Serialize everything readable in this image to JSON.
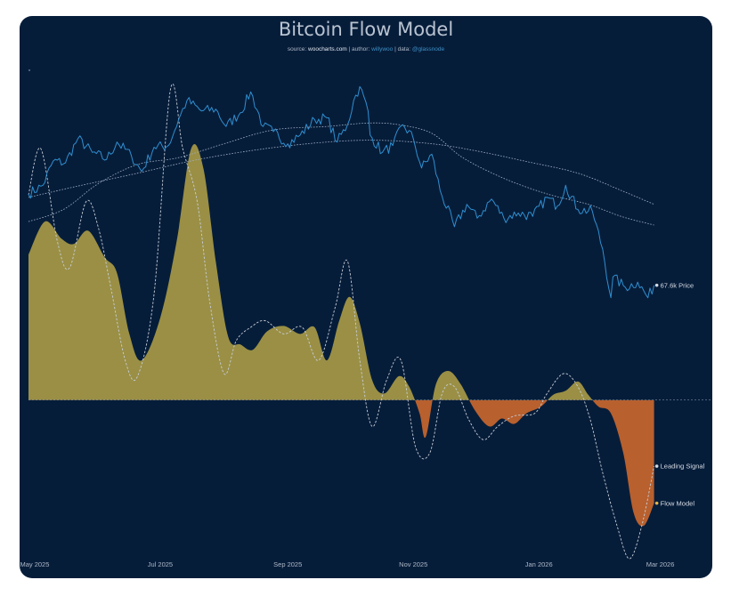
{
  "chart_data": {
    "type": "line",
    "title": "Bitcoin Flow Model",
    "subtitle": {
      "source_prefix": "source: ",
      "source": "woocharts.com",
      "author_prefix": " | author: ",
      "author": "willywoo",
      "data_prefix": " | data: ",
      "data": "@glassnode"
    },
    "x_range": [
      "2025-04-28",
      "2026-03-12"
    ],
    "x_ticks": [
      {
        "date": "2025-05-01",
        "label": "May 2025"
      },
      {
        "date": "2025-07-01",
        "label": "Jul 2025"
      },
      {
        "date": "2025-09-01",
        "label": "Sep 2025"
      },
      {
        "date": "2025-11-01",
        "label": "Nov 2025"
      },
      {
        "date": "2026-01-01",
        "label": "Jan 2026"
      },
      {
        "date": "2026-03-01",
        "label": "Mar 2026"
      }
    ],
    "price_range": [
      40000,
      130000
    ],
    "flow_range": [
      -1.3,
      2.5
    ],
    "grid": false,
    "legend": "end-labels",
    "series": [
      {
        "name": "Price",
        "axis": "price",
        "end_label": "67.6k Price",
        "color": "#2f8fd0",
        "points": [
          [
            "2025-04-28",
            94000
          ],
          [
            "2025-05-05",
            96500
          ],
          [
            "2025-05-10",
            103500
          ],
          [
            "2025-05-16",
            103000
          ],
          [
            "2025-05-22",
            110000
          ],
          [
            "2025-05-29",
            106000
          ],
          [
            "2025-06-05",
            104000
          ],
          [
            "2025-06-10",
            109000
          ],
          [
            "2025-06-17",
            105000
          ],
          [
            "2025-06-22",
            100500
          ],
          [
            "2025-06-28",
            107500
          ],
          [
            "2025-07-05",
            108000
          ],
          [
            "2025-07-11",
            117000
          ],
          [
            "2025-07-14",
            121000
          ],
          [
            "2025-07-21",
            118000
          ],
          [
            "2025-07-28",
            118500
          ],
          [
            "2025-08-02",
            113500
          ],
          [
            "2025-08-09",
            117500
          ],
          [
            "2025-08-14",
            123500
          ],
          [
            "2025-08-20",
            113500
          ],
          [
            "2025-08-25",
            112000
          ],
          [
            "2025-09-01",
            108500
          ],
          [
            "2025-09-07",
            111000
          ],
          [
            "2025-09-14",
            115500
          ],
          [
            "2025-09-20",
            116000
          ],
          [
            "2025-09-25",
            109000
          ],
          [
            "2025-09-30",
            114000
          ],
          [
            "2025-10-03",
            121000
          ],
          [
            "2025-10-06",
            125000
          ],
          [
            "2025-10-10",
            118000
          ],
          [
            "2025-10-11",
            111000
          ],
          [
            "2025-10-17",
            106000
          ],
          [
            "2025-10-22",
            108000
          ],
          [
            "2025-10-27",
            114000
          ],
          [
            "2025-11-01",
            110000
          ],
          [
            "2025-11-05",
            101500
          ],
          [
            "2025-11-10",
            105500
          ],
          [
            "2025-11-14",
            95000
          ],
          [
            "2025-11-21",
            84500
          ],
          [
            "2025-11-27",
            91000
          ],
          [
            "2025-12-02",
            87000
          ],
          [
            "2025-12-09",
            92500
          ],
          [
            "2025-12-15",
            87000
          ],
          [
            "2025-12-22",
            88500
          ],
          [
            "2025-12-29",
            87500
          ],
          [
            "2026-01-05",
            93000
          ],
          [
            "2026-01-10",
            90500
          ],
          [
            "2026-01-14",
            96500
          ],
          [
            "2026-01-20",
            89500
          ],
          [
            "2026-01-27",
            89000
          ],
          [
            "2026-02-01",
            78000
          ],
          [
            "2026-02-05",
            64000
          ],
          [
            "2026-02-06",
            70000
          ],
          [
            "2026-02-12",
            67000
          ],
          [
            "2026-02-18",
            68500
          ],
          [
            "2026-02-23",
            64000
          ],
          [
            "2026-02-26",
            67600
          ]
        ]
      },
      {
        "name": "Price 100-day average",
        "axis": "price",
        "color": "#9fb0c6",
        "dashed": true,
        "points": [
          [
            "2025-04-28",
            86000
          ],
          [
            "2025-05-15",
            89500
          ],
          [
            "2025-06-01",
            97000
          ],
          [
            "2025-06-20",
            102500
          ],
          [
            "2025-07-10",
            104500
          ],
          [
            "2025-08-01",
            108500
          ],
          [
            "2025-08-25",
            112500
          ],
          [
            "2025-09-20",
            113500
          ],
          [
            "2025-10-10",
            114500
          ],
          [
            "2025-10-25",
            114000
          ],
          [
            "2025-11-10",
            111500
          ],
          [
            "2025-11-25",
            104500
          ],
          [
            "2025-12-15",
            98500
          ],
          [
            "2026-01-05",
            94000
          ],
          [
            "2026-01-25",
            91000
          ],
          [
            "2026-02-10",
            87500
          ],
          [
            "2026-02-26",
            85000
          ]
        ]
      },
      {
        "name": "Price 200-day average",
        "axis": "price",
        "color": "#9fb0c6",
        "dashed": true,
        "points": [
          [
            "2025-04-28",
            93000
          ],
          [
            "2025-05-20",
            96000
          ],
          [
            "2025-06-20",
            100000
          ],
          [
            "2025-07-20",
            104000
          ],
          [
            "2025-08-20",
            107000
          ],
          [
            "2025-09-20",
            109000
          ],
          [
            "2025-10-15",
            109500
          ],
          [
            "2025-11-10",
            108500
          ],
          [
            "2025-12-01",
            106500
          ],
          [
            "2025-12-25",
            103500
          ],
          [
            "2026-01-20",
            100000
          ],
          [
            "2026-02-10",
            95000
          ],
          [
            "2026-02-26",
            91000
          ]
        ]
      },
      {
        "name": "Flow Model",
        "axis": "flow",
        "end_label": "Flow Model",
        "color_positive": "#9a8f45",
        "color_negative": "#b8602e",
        "dot_color": "#e2b64a",
        "points": [
          [
            "2025-04-28",
            1.1
          ],
          [
            "2025-05-06",
            1.35
          ],
          [
            "2025-05-14",
            1.22
          ],
          [
            "2025-05-20",
            1.18
          ],
          [
            "2025-05-27",
            1.28
          ],
          [
            "2025-06-04",
            1.08
          ],
          [
            "2025-06-10",
            0.96
          ],
          [
            "2025-06-16",
            0.5
          ],
          [
            "2025-06-22",
            0.3
          ],
          [
            "2025-07-01",
            0.62
          ],
          [
            "2025-07-09",
            1.2
          ],
          [
            "2025-07-16",
            1.9
          ],
          [
            "2025-07-22",
            1.75
          ],
          [
            "2025-07-28",
            1.05
          ],
          [
            "2025-08-03",
            0.48
          ],
          [
            "2025-08-09",
            0.42
          ],
          [
            "2025-08-15",
            0.38
          ],
          [
            "2025-08-22",
            0.52
          ],
          [
            "2025-08-30",
            0.56
          ],
          [
            "2025-09-07",
            0.5
          ],
          [
            "2025-09-14",
            0.55
          ],
          [
            "2025-09-20",
            0.3
          ],
          [
            "2025-09-26",
            0.6
          ],
          [
            "2025-10-01",
            0.78
          ],
          [
            "2025-10-06",
            0.58
          ],
          [
            "2025-10-12",
            0.15
          ],
          [
            "2025-10-18",
            0.05
          ],
          [
            "2025-10-25",
            0.18
          ],
          [
            "2025-10-30",
            0.1
          ],
          [
            "2025-11-04",
            -0.1
          ],
          [
            "2025-11-07",
            -0.28
          ],
          [
            "2025-11-12",
            0.12
          ],
          [
            "2025-11-18",
            0.22
          ],
          [
            "2025-11-24",
            0.12
          ],
          [
            "2025-12-01",
            -0.08
          ],
          [
            "2025-12-08",
            -0.2
          ],
          [
            "2025-12-14",
            -0.14
          ],
          [
            "2025-12-20",
            -0.18
          ],
          [
            "2025-12-26",
            -0.1
          ],
          [
            "2026-01-02",
            -0.05
          ],
          [
            "2026-01-08",
            0.04
          ],
          [
            "2026-01-14",
            0.07
          ],
          [
            "2026-01-20",
            0.14
          ],
          [
            "2026-01-25",
            0.04
          ],
          [
            "2026-01-30",
            -0.05
          ],
          [
            "2026-02-05",
            -0.1
          ],
          [
            "2026-02-11",
            -0.4
          ],
          [
            "2026-02-16",
            -0.85
          ],
          [
            "2026-02-21",
            -0.95
          ],
          [
            "2026-02-26",
            -0.78
          ]
        ]
      },
      {
        "name": "Leading Signal",
        "axis": "flow",
        "end_label": "Leading Signal",
        "color": "#c7cdd6",
        "dashed": true,
        "points": [
          [
            "2025-04-28",
            1.55
          ],
          [
            "2025-05-04",
            1.9
          ],
          [
            "2025-05-12",
            1.2
          ],
          [
            "2025-05-18",
            1.0
          ],
          [
            "2025-05-26",
            1.5
          ],
          [
            "2025-06-01",
            1.3
          ],
          [
            "2025-06-07",
            0.85
          ],
          [
            "2025-06-14",
            0.3
          ],
          [
            "2025-06-20",
            0.18
          ],
          [
            "2025-06-28",
            0.8
          ],
          [
            "2025-07-06",
            2.35
          ],
          [
            "2025-07-12",
            1.9
          ],
          [
            "2025-07-19",
            1.5
          ],
          [
            "2025-07-25",
            0.75
          ],
          [
            "2025-08-01",
            0.2
          ],
          [
            "2025-08-07",
            0.45
          ],
          [
            "2025-08-14",
            0.55
          ],
          [
            "2025-08-21",
            0.6
          ],
          [
            "2025-08-30",
            0.5
          ],
          [
            "2025-09-08",
            0.55
          ],
          [
            "2025-09-16",
            0.3
          ],
          [
            "2025-09-24",
            0.7
          ],
          [
            "2025-09-30",
            1.05
          ],
          [
            "2025-10-06",
            0.3
          ],
          [
            "2025-10-12",
            -0.2
          ],
          [
            "2025-10-19",
            0.15
          ],
          [
            "2025-10-26",
            0.3
          ],
          [
            "2025-11-02",
            -0.35
          ],
          [
            "2025-11-09",
            -0.4
          ],
          [
            "2025-11-15",
            0.05
          ],
          [
            "2025-11-21",
            0.1
          ],
          [
            "2025-11-28",
            -0.15
          ],
          [
            "2025-12-05",
            -0.3
          ],
          [
            "2025-12-12",
            -0.2
          ],
          [
            "2025-12-20",
            -0.12
          ],
          [
            "2025-12-30",
            -0.1
          ],
          [
            "2026-01-05",
            0.05
          ],
          [
            "2026-01-13",
            0.2
          ],
          [
            "2026-01-20",
            0.1
          ],
          [
            "2026-01-26",
            -0.15
          ],
          [
            "2026-02-01",
            -0.55
          ],
          [
            "2026-02-08",
            -0.95
          ],
          [
            "2026-02-14",
            -1.2
          ],
          [
            "2026-02-20",
            -0.95
          ],
          [
            "2026-02-26",
            -0.5
          ]
        ]
      }
    ]
  }
}
